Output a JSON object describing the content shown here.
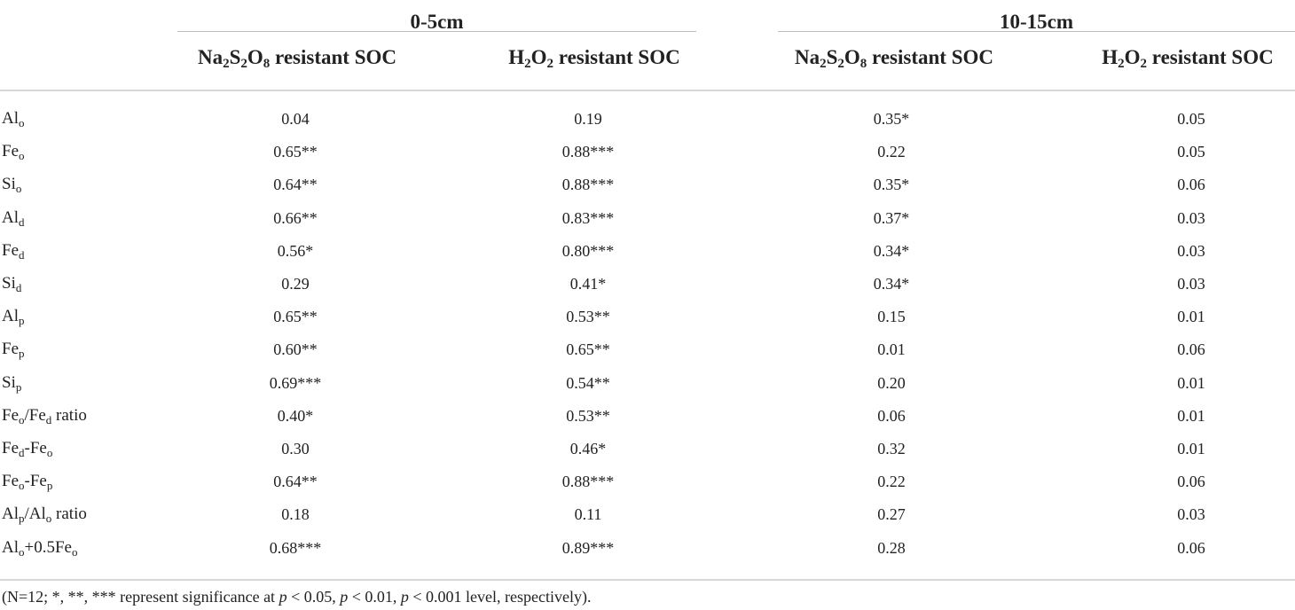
{
  "groups": [
    {
      "label": "0-5cm"
    },
    {
      "label": "10-15cm"
    }
  ],
  "columns": [
    {
      "pre": "Na",
      "s1": "2",
      "mid1": "S",
      "s2": "2",
      "mid2": "O",
      "s3": "8",
      "post": " resistant SOC"
    },
    {
      "pre": "H",
      "s1": "2",
      "mid1": "O",
      "s2": "2",
      "mid2": "",
      "s3": "",
      "post": " resistant SOC"
    },
    {
      "pre": "Na",
      "s1": "2",
      "mid1": "S",
      "s2": "2",
      "mid2": "O",
      "s3": "8",
      "post": " resistant SOC"
    },
    {
      "pre": "H",
      "s1": "2",
      "mid1": "O",
      "s2": "2",
      "mid2": "",
      "s3": "",
      "post": " resistant SOC"
    }
  ],
  "rows": [
    {
      "a": "Al",
      "as": "o",
      "b": "",
      "bs": "",
      "c": "",
      "values": [
        "0.04",
        "0.19",
        "0.35*",
        "0.05"
      ]
    },
    {
      "a": "Fe",
      "as": "o",
      "b": "",
      "bs": "",
      "c": "",
      "values": [
        "0.65**",
        "0.88***",
        "0.22",
        "0.05"
      ]
    },
    {
      "a": "Si",
      "as": "o",
      "b": "",
      "bs": "",
      "c": "",
      "values": [
        "0.64**",
        "0.88***",
        "0.35*",
        "0.06"
      ]
    },
    {
      "a": "Al",
      "as": "d",
      "b": "",
      "bs": "",
      "c": "",
      "values": [
        "0.66**",
        "0.83***",
        "0.37*",
        "0.03"
      ]
    },
    {
      "a": "Fe",
      "as": "d",
      "b": "",
      "bs": "",
      "c": "",
      "values": [
        "0.56*",
        "0.80***",
        "0.34*",
        "0.03"
      ]
    },
    {
      "a": "Si",
      "as": "d",
      "b": "",
      "bs": "",
      "c": "",
      "values": [
        "0.29",
        "0.41*",
        "0.34*",
        "0.03"
      ]
    },
    {
      "a": "Al",
      "as": "p",
      "b": "",
      "bs": "",
      "c": "",
      "values": [
        "0.65**",
        "0.53**",
        "0.15",
        "0.01"
      ]
    },
    {
      "a": "Fe",
      "as": "p",
      "b": "",
      "bs": "",
      "c": "",
      "values": [
        "0.60**",
        "0.65**",
        "0.01",
        "0.06"
      ]
    },
    {
      "a": "Si",
      "as": "p",
      "b": "",
      "bs": "",
      "c": "",
      "values": [
        "0.69***",
        "0.54**",
        "0.20",
        "0.01"
      ]
    },
    {
      "a": "Fe",
      "as": "o",
      "b": "/Fe",
      "bs": "d",
      "c": " ratio",
      "values": [
        "0.40*",
        "0.53**",
        "0.06",
        "0.01"
      ]
    },
    {
      "a": "Fe",
      "as": "d",
      "b": "-Fe",
      "bs": "o",
      "c": "",
      "values": [
        "0.30",
        "0.46*",
        "0.32",
        "0.01"
      ]
    },
    {
      "a": "Fe",
      "as": "o",
      "b": "-Fe",
      "bs": "p",
      "c": "",
      "values": [
        "0.64**",
        "0.88***",
        "0.22",
        "0.06"
      ]
    },
    {
      "a": "Al",
      "as": "p",
      "b": "/Al",
      "bs": "o",
      "c": " ratio",
      "values": [
        "0.18",
        "0.11",
        "0.27",
        "0.03"
      ]
    },
    {
      "a": "Al",
      "as": "o",
      "b": "+0.5Fe",
      "bs": "o",
      "c": "",
      "values": [
        "0.68***",
        "0.89***",
        "0.28",
        "0.06"
      ]
    }
  ],
  "footnote": {
    "t1": "(N=12; *, **, *** represent significance at ",
    "p": "p",
    "t2": " < 0.05, ",
    "t3": " < 0.01, ",
    "t4": " < 0.001 level, respectively)."
  }
}
